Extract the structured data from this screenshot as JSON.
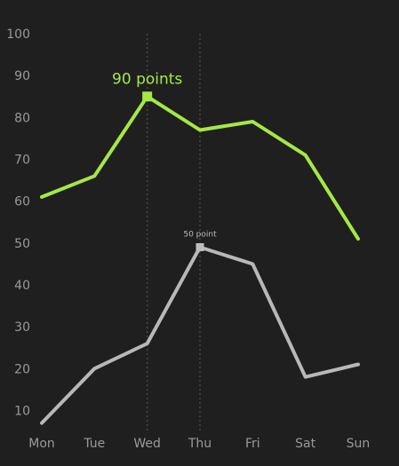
{
  "chart_data": {
    "type": "line",
    "categories": [
      "Mon",
      "Tue",
      "Wed",
      "Thu",
      "Fri",
      "Sat",
      "Sun"
    ],
    "y_ticks": [
      10,
      20,
      30,
      40,
      50,
      60,
      70,
      80,
      90,
      100
    ],
    "ylim": [
      5,
      100
    ],
    "grid": false,
    "series": [
      {
        "values": [
          61,
          66,
          85,
          77,
          79,
          71,
          51
        ],
        "color": "#a6e843"
      },
      {
        "values": [
          7,
          20,
          26,
          49,
          45,
          18,
          21
        ],
        "color": "#b8b8b8"
      }
    ],
    "annotations": [
      {
        "series": 0,
        "category": "Wed",
        "text": "90 points",
        "color": "#a6e843"
      },
      {
        "series": 1,
        "category": "Thu",
        "text": "50 point",
        "color": "#bdbdbd"
      }
    ],
    "background": "#1f1f1f",
    "tick_color": "#9a9a9a",
    "guide_color": "#5a5a5a"
  }
}
